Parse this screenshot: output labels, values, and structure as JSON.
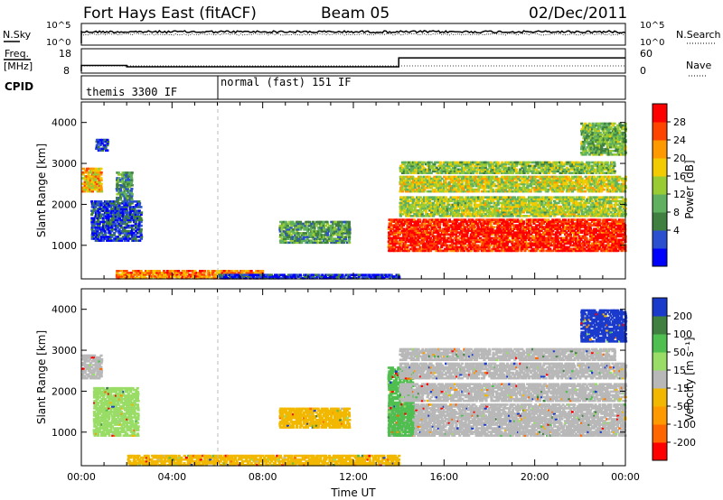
{
  "header": {
    "station": "Fort Hays East (fitACF)",
    "beam": "Beam 05",
    "date": "02/Dec/2011"
  },
  "noise_panel": {
    "left_label": "N.Sky",
    "left_ticks": [
      "10^5",
      "10^0"
    ],
    "right_ticks": [
      "10^5",
      "10^0"
    ],
    "right_label": "N.Search"
  },
  "freq_panel": {
    "left_label_1": "Freq.",
    "left_label_2": "[MHz]",
    "left_ticks": [
      "18",
      "8"
    ],
    "right_ticks": [
      "60",
      "0"
    ],
    "right_label": "Nave",
    "freq_steps": [
      {
        "t": 0.0,
        "mhz": 10.8
      },
      {
        "t": 2.0,
        "mhz": 10.8
      },
      {
        "t": 2.0,
        "mhz": 10.1
      },
      {
        "t": 14.0,
        "mhz": 10.1
      },
      {
        "t": 14.0,
        "mhz": 14.5
      },
      {
        "t": 24.0,
        "mhz": 14.5
      }
    ]
  },
  "cpid_panel": {
    "label": "CPID",
    "modes": [
      {
        "name": "themis 3300 IF",
        "start_hour": 0
      },
      {
        "name": "normal (fast) 151 IF",
        "start_hour": 6
      }
    ]
  },
  "chart_data": [
    {
      "type": "heatmap",
      "name": "power",
      "xlabel": "",
      "ylabel": "Slant Range [km]",
      "xlim": [
        0,
        24
      ],
      "ylim": [
        180,
        4500
      ],
      "yticks": [
        "1000",
        "2000",
        "3000",
        "4000"
      ],
      "colorbar_label": "Power [dB]",
      "colorbar_ticks": [
        "28",
        "24",
        "20",
        "16",
        "12",
        "8",
        "4"
      ],
      "colorbar_colors": [
        "#0000ff",
        "#2a4fcf",
        "#3f7f3f",
        "#5fb05f",
        "#99cc33",
        "#f2cc00",
        "#ff9900",
        "#ff4400",
        "#ff0000"
      ],
      "echo_regions": [
        {
          "t0": 0.0,
          "t1": 0.9,
          "r0": 2300,
          "r1": 2900,
          "level": 0.65
        },
        {
          "t0": 0.4,
          "t1": 2.6,
          "r0": 1100,
          "r1": 2100,
          "level": 0.15
        },
        {
          "t0": 1.5,
          "t1": 2.2,
          "r0": 2100,
          "r1": 2800,
          "level": 0.3
        },
        {
          "t0": 0.6,
          "t1": 1.2,
          "r0": 3300,
          "r1": 3600,
          "level": 0.15
        },
        {
          "t0": 8.7,
          "t1": 11.8,
          "r0": 1050,
          "r1": 1600,
          "level": 0.35
        },
        {
          "t0": 13.5,
          "t1": 24.0,
          "r0": 850,
          "r1": 1650,
          "level": 0.92
        },
        {
          "t0": 14.0,
          "t1": 24.0,
          "r0": 1700,
          "r1": 2200,
          "level": 0.5
        },
        {
          "t0": 14.0,
          "t1": 24.0,
          "r0": 2300,
          "r1": 2700,
          "level": 0.55
        },
        {
          "t0": 14.0,
          "t1": 23.5,
          "r0": 2750,
          "r1": 3050,
          "level": 0.45
        },
        {
          "t0": 1.5,
          "t1": 8.0,
          "r0": 180,
          "r1": 400,
          "level": 0.75
        },
        {
          "t0": 6.0,
          "t1": 14.0,
          "r0": 180,
          "r1": 300,
          "level": 0.12
        },
        {
          "t0": 22.0,
          "t1": 24.0,
          "r0": 3200,
          "r1": 4000,
          "level": 0.4
        }
      ]
    },
    {
      "type": "heatmap",
      "name": "velocity",
      "xlabel": "Time UT",
      "ylabel": "Slant Range [km]",
      "xlim": [
        0,
        24
      ],
      "ylim": [
        180,
        4500
      ],
      "xticks": [
        "00:00",
        "04:00",
        "08:00",
        "12:00",
        "16:00",
        "20:00",
        "00:00"
      ],
      "yticks": [
        "1000",
        "2000",
        "3000",
        "4000"
      ],
      "colorbar_label": "Velocity [m s⁻¹]",
      "colorbar_ticks": [
        "200",
        "100",
        "50",
        "15",
        "-15",
        "-50",
        "-100",
        "-200"
      ],
      "colorbar_colors": [
        "#ff0000",
        "#ff6600",
        "#ff9900",
        "#f2b800",
        "#b8b8b8",
        "#99dd66",
        "#4fbf4f",
        "#3f7f3f",
        "#1a3acc"
      ],
      "echo_regions": [
        {
          "t0": 0.0,
          "t1": 0.9,
          "r0": 2300,
          "r1": 2900,
          "color": "#b8b8b8"
        },
        {
          "t0": 0.5,
          "t1": 2.5,
          "r0": 900,
          "r1": 2100,
          "color": "#99dd66"
        },
        {
          "t0": 8.7,
          "t1": 11.8,
          "r0": 1100,
          "r1": 1600,
          "color": "#f2b800"
        },
        {
          "t0": 13.5,
          "t1": 24.0,
          "r0": 900,
          "r1": 1700,
          "color": "#b8b8b8"
        },
        {
          "t0": 13.5,
          "t1": 14.6,
          "r0": 900,
          "r1": 2600,
          "color": "#4fbf4f"
        },
        {
          "t0": 14.0,
          "t1": 24.0,
          "r0": 1750,
          "r1": 2200,
          "color": "#b8b8b8"
        },
        {
          "t0": 14.0,
          "t1": 24.0,
          "r0": 2300,
          "r1": 2700,
          "color": "#b8b8b8"
        },
        {
          "t0": 14.0,
          "t1": 23.5,
          "r0": 2750,
          "r1": 3050,
          "color": "#b8b8b8"
        },
        {
          "t0": 2.0,
          "t1": 14.0,
          "r0": 180,
          "r1": 450,
          "color": "#f2b800"
        },
        {
          "t0": 22.0,
          "t1": 24.0,
          "r0": 3200,
          "r1": 4000,
          "color": "#1a3acc"
        }
      ]
    }
  ]
}
